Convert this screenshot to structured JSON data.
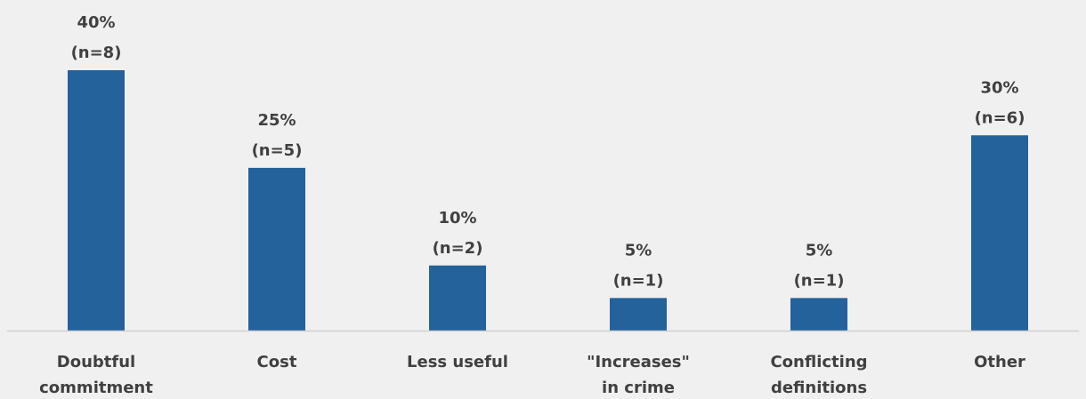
{
  "chart_data": {
    "type": "bar",
    "categories": [
      [
        "Doubtful",
        "commitment"
      ],
      [
        "Cost"
      ],
      [
        "Less useful"
      ],
      [
        "\"Increases\"",
        "in crime"
      ],
      [
        "Conflicting",
        "definitions"
      ],
      [
        "Other"
      ]
    ],
    "values": [
      40,
      25,
      10,
      5,
      5,
      30
    ],
    "data_labels": [
      [
        "40%",
        "(n=8)"
      ],
      [
        "25%",
        "(n=5)"
      ],
      [
        "10%",
        "(n=2)"
      ],
      [
        "5%",
        "(n=1)"
      ],
      [
        "5%",
        "(n=1)"
      ],
      [
        "30%",
        "(n=6)"
      ]
    ],
    "ylim": [
      0,
      40
    ],
    "grid": false,
    "bar_color": "#23629b",
    "axis_color": "#d0d0d0",
    "text_color": "#404040"
  }
}
